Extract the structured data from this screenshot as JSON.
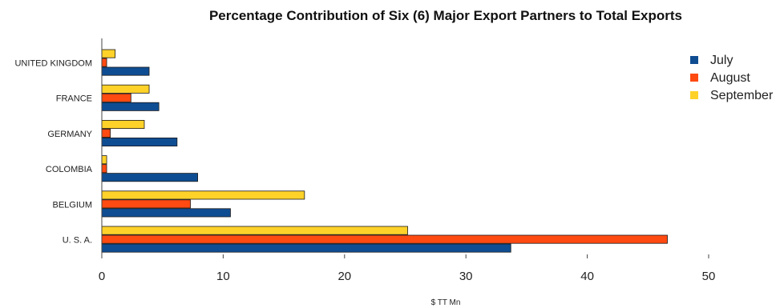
{
  "chart_data": {
    "type": "bar",
    "orientation": "horizontal",
    "title": "Percentage Contribution of Six (6) Major Export Partners to Total Exports",
    "xlabel": "$ TT Mn",
    "ylabel": "",
    "xlim": [
      0,
      50
    ],
    "xticks": [
      "0",
      "10",
      "20",
      "30",
      "40",
      "50"
    ],
    "categories": [
      "UNITED KINGDOM",
      "FRANCE",
      "GERMANY",
      "COLOMBIA",
      "BELGIUM",
      "U. S. A."
    ],
    "series": [
      {
        "name": "July",
        "color": "#0f4d92",
        "values": [
          3.9,
          4.7,
          6.2,
          7.9,
          10.6,
          33.7
        ]
      },
      {
        "name": "August",
        "color": "#ff4a12",
        "values": [
          0.4,
          2.4,
          0.7,
          0.4,
          7.3,
          46.6
        ]
      },
      {
        "name": "September",
        "color": "#ffd22a",
        "values": [
          1.1,
          3.9,
          3.5,
          0.4,
          16.7,
          25.2
        ]
      }
    ],
    "legend": "top-right",
    "grid": false
  }
}
